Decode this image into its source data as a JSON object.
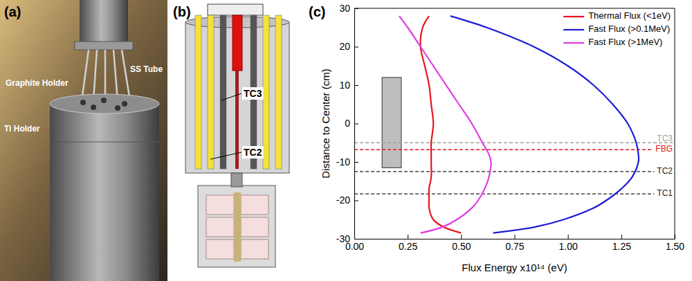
{
  "photo": {
    "label": "(a)",
    "annotations": [
      "Graphite Holder",
      "SS Tube",
      "Ti Holder"
    ]
  },
  "diagram": {
    "label": "(b)",
    "annotations": [
      "TC3",
      "TC2"
    ]
  },
  "chart_data": {
    "type": "line",
    "panel_label": "(c)",
    "x_label": "Flux Energy x10¹⁴ (eV)",
    "y_label": "Distance to Center (cm)",
    "y": [
      28,
      25,
      20,
      15,
      10,
      5,
      0,
      -5,
      -8,
      -10,
      -14,
      -17,
      -20,
      -22,
      -25,
      -27,
      -28.5
    ],
    "series": [
      {
        "name": "Thermal Flux (<1eV)",
        "color": "#e8141c",
        "values": [
          0.35,
          0.32,
          0.31,
          0.33,
          0.35,
          0.36,
          0.37,
          0.36,
          0.36,
          0.36,
          0.36,
          0.35,
          0.35,
          0.35,
          0.37,
          0.42,
          0.5
        ]
      },
      {
        "name": "Fast Flux (>0.1MeV)",
        "color": "#1c1cd6",
        "values": [
          0.45,
          0.62,
          0.84,
          1.0,
          1.12,
          1.21,
          1.28,
          1.32,
          1.33,
          1.33,
          1.3,
          1.25,
          1.18,
          1.12,
          0.98,
          0.84,
          0.65
        ]
      },
      {
        "name": "Fast Flux (>1MeV)",
        "color": "#e03ce0",
        "values": [
          0.21,
          0.25,
          0.31,
          0.37,
          0.43,
          0.49,
          0.55,
          0.6,
          0.63,
          0.64,
          0.63,
          0.61,
          0.58,
          0.55,
          0.48,
          0.41,
          0.31
        ]
      }
    ],
    "xlim": [
      0,
      1.5
    ],
    "xticks": [
      {
        "value": 0,
        "label": "0.00"
      },
      {
        "value": 0.25,
        "label": "0.25"
      },
      {
        "value": 0.5,
        "label": "0.50"
      },
      {
        "value": 0.75,
        "label": "0.75"
      },
      {
        "value": 1,
        "label": "1.00"
      },
      {
        "value": 1.25,
        "label": "1.25"
      },
      {
        "value": 1.5,
        "label": "1.50"
      }
    ],
    "ylim": [
      -30,
      30
    ],
    "yticks": [
      -30,
      -20,
      -10,
      0,
      10,
      20,
      30
    ],
    "reference_lines": [
      {
        "label": "TC3",
        "value": -5,
        "color": "#a0a0a0"
      },
      {
        "label": "FBG",
        "value": -6.8,
        "color": "#e8141c"
      },
      {
        "label": "TC2",
        "value": -12.5,
        "color": "#222222"
      },
      {
        "label": "TC1",
        "value": -18.3,
        "color": "#222222"
      }
    ],
    "regions": [
      {
        "x": [
          0.13,
          0.22
        ],
        "y": [
          -11.5,
          12
        ],
        "color": "#bdbdbd"
      }
    ],
    "legend": "top-right",
    "grid": false
  }
}
